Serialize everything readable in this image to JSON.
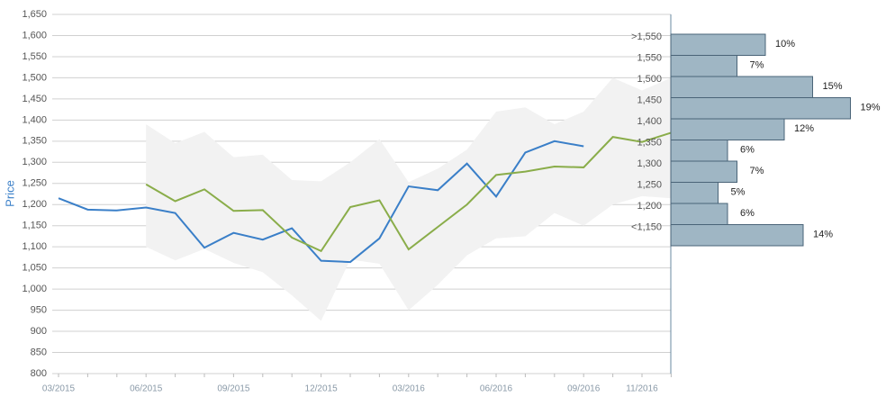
{
  "chart_data": [
    {
      "type": "line",
      "y_label": "Price",
      "categories": [
        "03/2015",
        null,
        null,
        "06/2015",
        null,
        null,
        "09/2015",
        null,
        null,
        "12/2015",
        null,
        null,
        "03/2016",
        null,
        null,
        "06/2016",
        null,
        null,
        "09/2016",
        null,
        "11/2016",
        null
      ],
      "series": [
        {
          "color": "#3a7fc8",
          "values": [
            1215,
            1188,
            1186,
            1193,
            1180,
            1098,
            1133,
            1117,
            1144,
            1067,
            1064,
            1120,
            1243,
            1234,
            1297,
            1219,
            1323,
            1350,
            1338,
            null,
            null,
            null
          ]
        },
        {
          "color": "#8aad4a",
          "values": [
            null,
            null,
            null,
            1248,
            1208,
            1236,
            1185,
            1187,
            1122,
            1090,
            1194,
            1210,
            1094,
            1147,
            1200,
            1270,
            1278,
            1290,
            1288,
            1360,
            1348,
            1370
          ]
        }
      ],
      "band": {
        "color": "#f2f2f2",
        "upper": [
          null,
          null,
          null,
          1390,
          1345,
          1372,
          1312,
          1318,
          1258,
          1255,
          1300,
          1355,
          1253,
          1285,
          1330,
          1420,
          1430,
          1390,
          1420,
          1500,
          1470,
          1500
        ],
        "lower": [
          null,
          null,
          null,
          1100,
          1068,
          1095,
          1062,
          1040,
          985,
          925,
          1070,
          1060,
          950,
          1010,
          1080,
          1120,
          1125,
          1180,
          1150,
          1200,
          1220,
          1215
        ]
      },
      "ylim": [
        800,
        1650
      ],
      "yticks": [
        {
          "value": 800,
          "label": "800"
        },
        {
          "value": 850,
          "label": "850"
        },
        {
          "value": 900,
          "label": "900"
        },
        {
          "value": 950,
          "label": "950"
        },
        {
          "value": 1000,
          "label": "1,000"
        },
        {
          "value": 1050,
          "label": "1,050"
        },
        {
          "value": 1100,
          "label": "1,100"
        },
        {
          "value": 1150,
          "label": "1,150"
        },
        {
          "value": 1200,
          "label": "1,200"
        },
        {
          "value": 1250,
          "label": "1,250"
        },
        {
          "value": 1300,
          "label": "1,300"
        },
        {
          "value": 1350,
          "label": "1,350"
        },
        {
          "value": 1400,
          "label": "1,400"
        },
        {
          "value": 1450,
          "label": "1,450"
        },
        {
          "value": 1500,
          "label": "1,500"
        },
        {
          "value": 1550,
          "label": "1,550"
        },
        {
          "value": 1600,
          "label": "1,600"
        },
        {
          "value": 1650,
          "label": "1,650"
        }
      ],
      "grid": true
    },
    {
      "type": "hbar",
      "categories": [
        ">1,550",
        "1,550",
        "1,500",
        "1,450",
        "1,400",
        "1,350",
        "1,300",
        "1,250",
        "1,200",
        "<1,150"
      ],
      "values": [
        10,
        7,
        15,
        19,
        12,
        6,
        7,
        5,
        6,
        14
      ],
      "value_labels": [
        "10%",
        "7%",
        "15%",
        "19%",
        "12%",
        "6%",
        "7%",
        "5%",
        "6%",
        "14%"
      ],
      "color": "#9fb6c4",
      "xlim": [
        0,
        20
      ]
    }
  ]
}
